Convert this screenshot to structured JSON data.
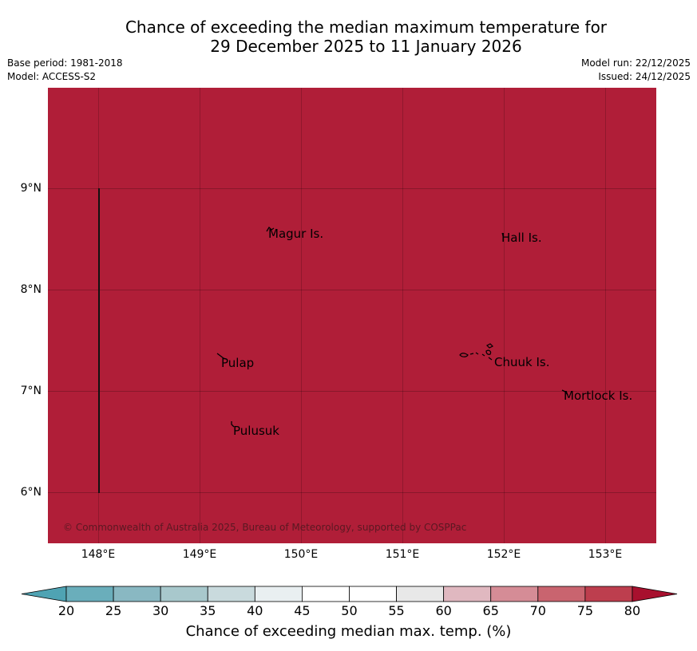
{
  "title": {
    "line1": "Chance of exceeding the median maximum temperature for",
    "line2": "29 December 2025 to 11 January 2026"
  },
  "meta": {
    "base_period": "Base period: 1981-2018",
    "model": "Model: ACCESS-S2",
    "model_run": "Model run: 22/12/2025",
    "issued": "Issued: 24/12/2025"
  },
  "map": {
    "fill_color": "#b01e38",
    "lat_labels": [
      "9°N",
      "8°N",
      "7°N",
      "6°N"
    ],
    "lon_labels": [
      "148°E",
      "149°E",
      "150°E",
      "151°E",
      "152°E",
      "153°E"
    ],
    "places": [
      "Magur Is.",
      "Hall Is.",
      "Pulap",
      "Chuuk Is.",
      "Mortlock Is.",
      "Pulusuk"
    ],
    "copyright": "© Commonwealth of Australia 2025, Bureau of Meteorology, supported by COSPPac"
  },
  "colorbar": {
    "labels": [
      "20",
      "25",
      "30",
      "35",
      "40",
      "45",
      "50",
      "55",
      "60",
      "65",
      "70",
      "75",
      "80"
    ],
    "colors": [
      "#6aaebb",
      "#89b8c2",
      "#a8c8cc",
      "#c9dadd",
      "#e9eff1",
      "#ffffff",
      "#ffffff",
      "#e8e8e8",
      "#e0b8c0",
      "#d58c96",
      "#c9646f",
      "#bd3e4e"
    ],
    "under_color": "#4fa3b3",
    "over_color": "#a8102e",
    "title": "Chance of exceeding median max. temp. (%)"
  }
}
